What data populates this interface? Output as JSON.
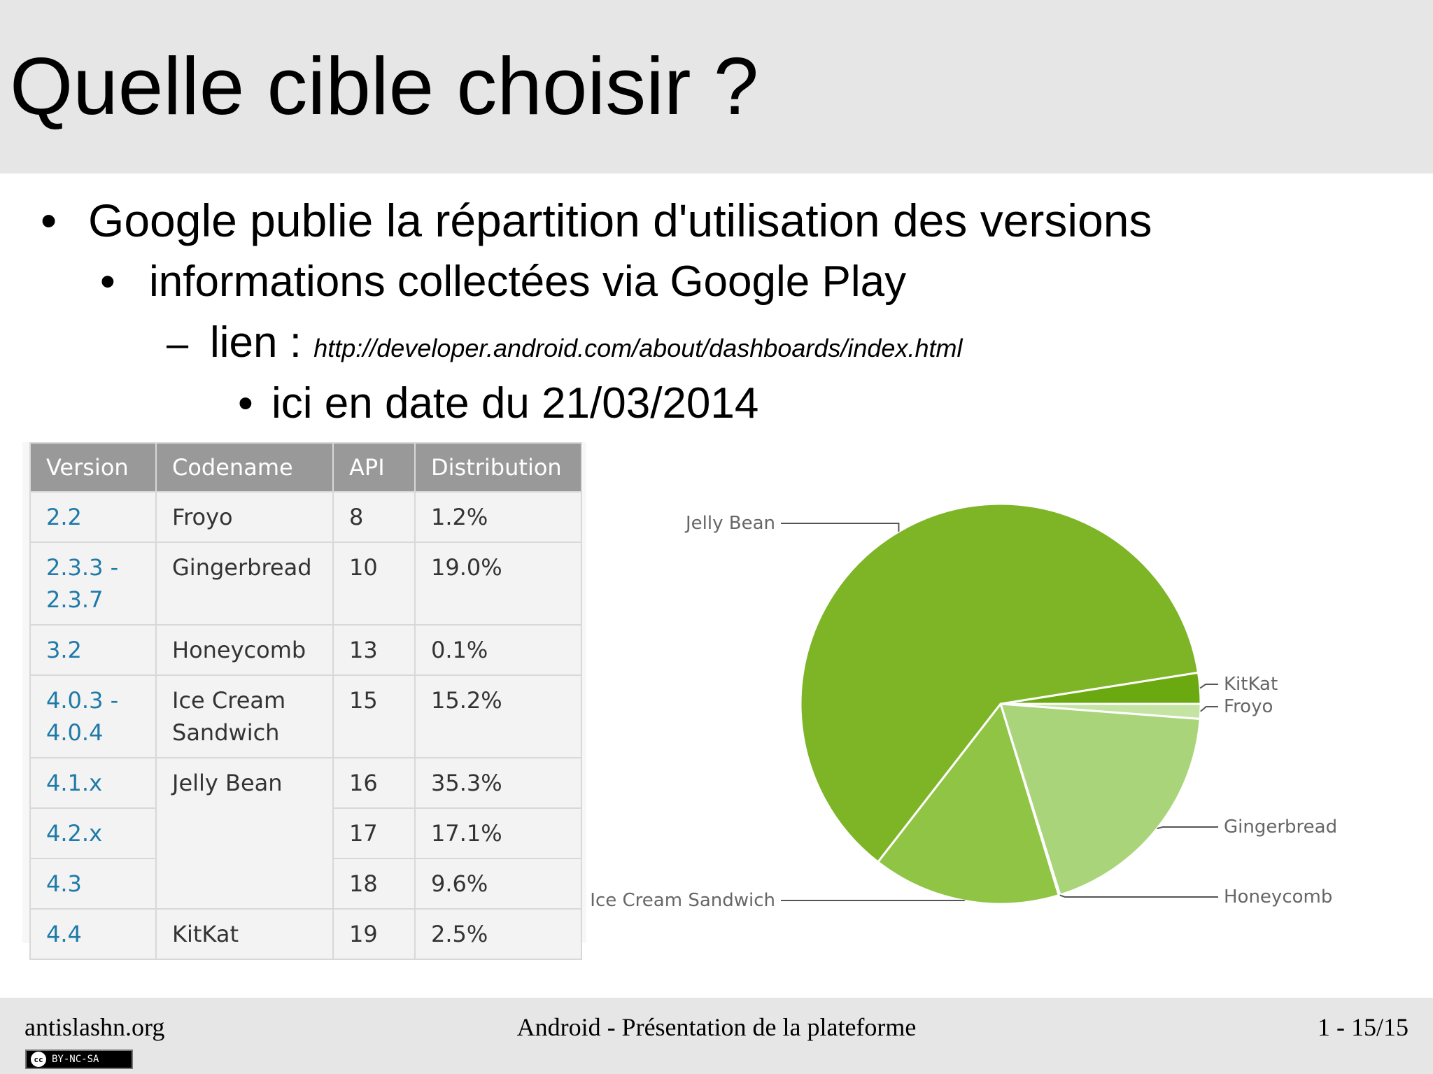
{
  "slide": {
    "title": "Quelle cible choisir ?",
    "bullets": [
      {
        "marker": "•",
        "text": "Google publie la répartition d'utilisation des versions"
      },
      {
        "marker": "•",
        "text": "informations collectées via Google Play"
      },
      {
        "marker": "–",
        "text": "lien : ",
        "url": "http://developer.android.com/about/dashboards/index.html"
      },
      {
        "marker": "•",
        "text": "ici en date du 21/03/2014"
      }
    ]
  },
  "table": {
    "headers": [
      "Version",
      "Codename",
      "API",
      "Distribution"
    ],
    "rows": [
      {
        "version": "2.2",
        "codename": "Froyo",
        "api": "8",
        "dist": "1.2%"
      },
      {
        "version": "2.3.3 - 2.3.7",
        "codename": "Gingerbread",
        "api": "10",
        "dist": "19.0%"
      },
      {
        "version": "3.2",
        "codename": "Honeycomb",
        "api": "13",
        "dist": "0.1%"
      },
      {
        "version": "4.0.3 - 4.0.4",
        "codename": "Ice Cream Sandwich",
        "api": "15",
        "dist": "15.2%"
      },
      {
        "version": "4.1.x",
        "codename": "Jelly Bean",
        "api": "16",
        "dist": "35.3%"
      },
      {
        "version": "4.2.x",
        "codename": "",
        "api": "17",
        "dist": "17.1%"
      },
      {
        "version": "4.3",
        "codename": "",
        "api": "18",
        "dist": "9.6%"
      },
      {
        "version": "4.4",
        "codename": "KitKat",
        "api": "19",
        "dist": "2.5%"
      }
    ]
  },
  "chart_data": {
    "type": "pie",
    "slices": [
      {
        "label": "KitKat",
        "value": 2.5,
        "color": "#6aa90f"
      },
      {
        "label": "Froyo",
        "value": 1.2,
        "color": "#c5e3a3"
      },
      {
        "label": "Gingerbread",
        "value": 19.0,
        "color": "#a9d47a"
      },
      {
        "label": "Honeycomb",
        "value": 0.1,
        "color": "#a9d47a"
      },
      {
        "label": "Ice Cream Sandwich",
        "value": 15.2,
        "color": "#8fc444"
      },
      {
        "label": "Jelly Bean",
        "value": 62.0,
        "color": "#7db526"
      }
    ]
  },
  "footer": {
    "left": "antislashn.org",
    "center": "Android - Présentation de la plateforme",
    "right": "1 - 15/15",
    "license_badge": "BY-NC-SA",
    "license_icon": "cc"
  }
}
